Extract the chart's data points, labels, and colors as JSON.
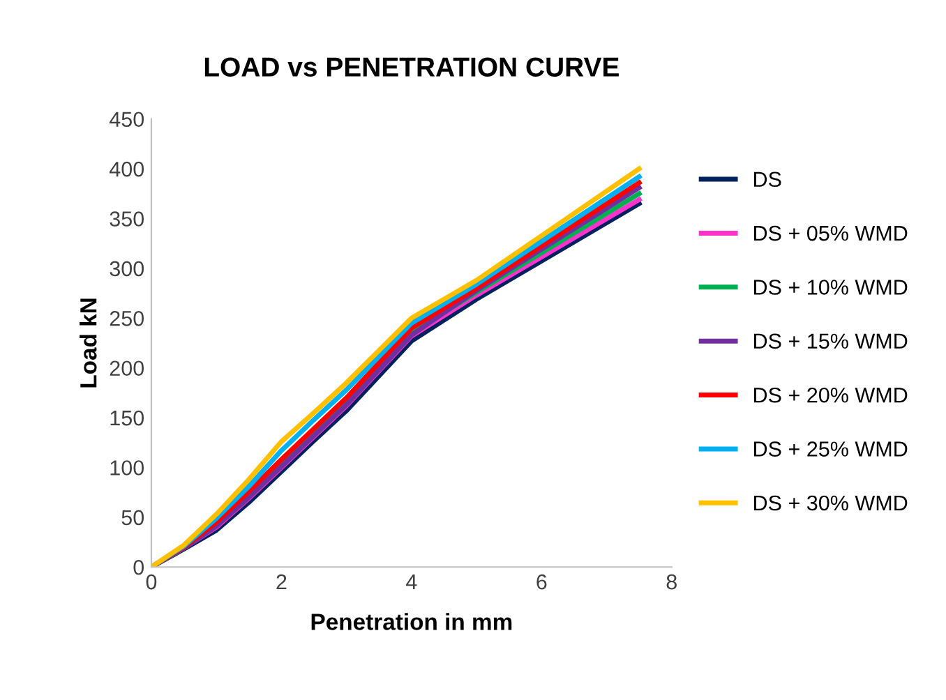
{
  "chart_data": {
    "type": "line",
    "title": "LOAD vs PENETRATION CURVE",
    "xlabel": "Penetration in mm",
    "ylabel": "Load kN",
    "x": [
      0,
      0.5,
      1,
      1.5,
      2,
      2.5,
      3,
      4,
      5,
      7.5
    ],
    "xlim": [
      0,
      8
    ],
    "xticks": [
      0,
      2,
      4,
      6,
      8
    ],
    "ylim": [
      0,
      450
    ],
    "yticks": [
      0,
      50,
      100,
      150,
      200,
      250,
      300,
      350,
      400,
      450
    ],
    "grid": false,
    "legend": "right",
    "marker": "none",
    "line_style": "solid",
    "series": [
      {
        "name": "DS",
        "color": "#002060",
        "values": [
          0,
          18,
          37,
          65,
          96,
          127,
          157,
          227,
          269,
          365
        ]
      },
      {
        "name": "DS + 05% WMD",
        "color": "#ff33cc",
        "values": [
          0,
          19,
          40,
          69,
          100,
          131,
          162,
          232,
          273,
          369
        ]
      },
      {
        "name": "DS + 10% WMD",
        "color": "#00b050",
        "values": [
          0,
          19,
          42,
          71,
          103,
          134,
          165,
          235,
          276,
          375
        ]
      },
      {
        "name": "DS + 15% WMD",
        "color": "#7030a0",
        "values": [
          0,
          19,
          41,
          70,
          101,
          132,
          163,
          233,
          278,
          381
        ]
      },
      {
        "name": "DS + 20% WMD",
        "color": "#ff0000",
        "values": [
          0,
          20,
          45,
          76,
          108,
          139,
          170,
          240,
          280,
          386
        ]
      },
      {
        "name": "DS + 25% WMD",
        "color": "#00b0f0",
        "values": [
          0,
          21,
          49,
          81,
          117,
          148,
          178,
          245,
          284,
          392
        ]
      },
      {
        "name": "DS + 30% WMD",
        "color": "#ffc000",
        "values": [
          0,
          22,
          53,
          88,
          126,
          155,
          185,
          250,
          288,
          400
        ]
      }
    ]
  }
}
